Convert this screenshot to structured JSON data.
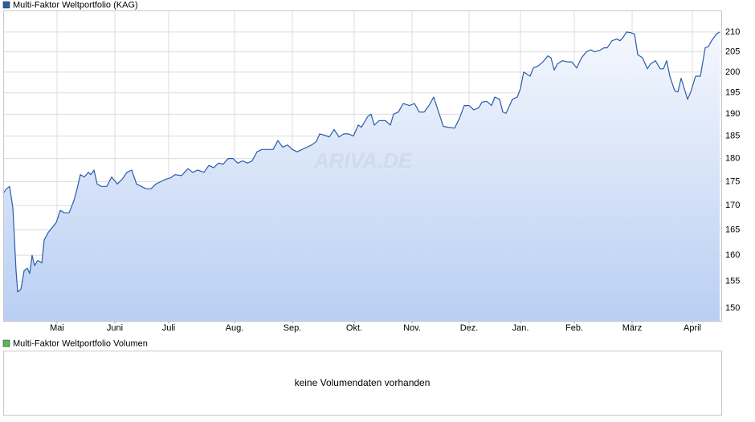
{
  "chart_data": {
    "type": "line",
    "title": "Multi-Faktor Weltportfolio (KAG)",
    "volume_title": "Multi-Faktor Weltportfolio Volumen",
    "volume_message": "keine Volumendaten vorhanden",
    "watermark": "ARIVA.DE",
    "log": true,
    "grid": true,
    "xlim": [
      0,
      447
    ],
    "ylim": [
      147.7,
      215.6
    ],
    "yticks": [
      150,
      155,
      160,
      165,
      170,
      175,
      180,
      185,
      190,
      195,
      200,
      205,
      210
    ],
    "xticks": [
      {
        "value": 33.5,
        "label": "Mai"
      },
      {
        "value": 69.5,
        "label": "Juni"
      },
      {
        "value": 103,
        "label": "Juli"
      },
      {
        "value": 144,
        "label": "Aug."
      },
      {
        "value": 180,
        "label": "Sep."
      },
      {
        "value": 218.5,
        "label": "Okt."
      },
      {
        "value": 254.5,
        "label": "Nov."
      },
      {
        "value": 290,
        "label": "Dez."
      },
      {
        "value": 322,
        "label": "Jan."
      },
      {
        "value": 355.5,
        "label": "Feb."
      },
      {
        "value": 391.5,
        "label": "März"
      },
      {
        "value": 429,
        "label": "April"
      }
    ],
    "series": [
      {
        "name": "Multi-Faktor Weltportfolio (KAG)",
        "color": "#2a5caa",
        "fill_top": "#f4f7fd",
        "fill_bottom": "#b9cff3",
        "x": [
          0,
          2,
          4,
          6,
          8,
          9,
          11,
          13,
          15,
          16.5,
          18,
          19.5,
          21.5,
          24,
          25.5,
          28,
          30.5,
          33,
          35.5,
          38,
          41,
          44,
          46,
          48,
          50.5,
          53,
          54.5,
          56.5,
          58.5,
          61,
          64.5,
          67.5,
          71,
          74,
          77,
          80,
          83,
          86,
          89,
          92,
          95,
          98,
          101,
          104,
          107,
          111,
          115,
          118,
          121,
          125,
          128,
          131,
          134,
          137,
          140,
          143,
          146,
          149,
          152,
          155,
          158,
          161,
          164,
          168,
          171,
          174,
          177,
          180,
          183,
          186,
          189,
          192,
          195,
          197,
          200,
          203,
          206,
          209,
          212,
          215,
          218,
          221,
          223,
          227,
          229,
          231,
          234,
          238,
          241,
          243,
          246,
          249,
          253,
          256,
          259,
          262,
          265,
          268,
          271,
          274,
          277,
          281,
          284,
          287,
          290,
          293,
          296,
          298,
          301,
          304,
          306,
          309,
          311,
          313,
          317,
          320,
          322,
          324,
          326,
          328,
          330,
          333,
          336,
          339,
          341,
          343,
          345,
          348,
          351,
          354,
          357,
          360,
          363,
          366,
          368,
          371,
          374,
          376,
          379,
          382,
          384,
          386,
          388,
          391,
          393,
          395,
          398,
          401,
          403,
          406,
          409,
          411,
          413,
          415,
          418,
          420,
          422,
          424,
          426,
          428,
          431,
          434,
          437,
          439,
          441,
          444,
          446
        ],
        "values": [
          172.5,
          173.5,
          174,
          169.5,
          157,
          153,
          153.5,
          157,
          157.5,
          156.5,
          160,
          158,
          159,
          158.5,
          163,
          164.5,
          165.5,
          166.5,
          169,
          168.5,
          168.5,
          171,
          173.5,
          176.5,
          176,
          177,
          176.5,
          177.5,
          174.5,
          174,
          174,
          176,
          174.5,
          175.5,
          177,
          177.5,
          174.5,
          174,
          173.5,
          173.5,
          174.5,
          175,
          175.5,
          175.8,
          176.5,
          176.3,
          177.8,
          177,
          177.5,
          177,
          178.5,
          178,
          179,
          178.8,
          180,
          180,
          179,
          179.5,
          179,
          179.5,
          181.5,
          182,
          182,
          182,
          184,
          182.5,
          183,
          182,
          181.5,
          182,
          182.5,
          183,
          183.8,
          185.5,
          185.2,
          184.8,
          186.5,
          184.8,
          185.5,
          185.5,
          185,
          187.5,
          187,
          189.5,
          190,
          187.5,
          188.5,
          188.5,
          187.5,
          190,
          190.5,
          192.5,
          192,
          192.5,
          190.5,
          190.5,
          192,
          194,
          190.5,
          187.2,
          187,
          186.8,
          189,
          192,
          192,
          191,
          191.5,
          192.8,
          193,
          192,
          194,
          193.5,
          190.5,
          190.2,
          193.5,
          194,
          196,
          200,
          199.5,
          199,
          201,
          201.5,
          202.5,
          204,
          203.5,
          200.5,
          202,
          202.8,
          202.5,
          202.5,
          201,
          203.5,
          205,
          205.5,
          205,
          205.3,
          206,
          206,
          207.8,
          208.2,
          207.8,
          208.7,
          210,
          209.8,
          209.5,
          204.3,
          203.5,
          200.8,
          202,
          202.8,
          200.8,
          200.8,
          202.8,
          199,
          195.5,
          195.2,
          198.5,
          196,
          193.5,
          195.2,
          199,
          199,
          206,
          206.3,
          207.8,
          209.5,
          210
        ]
      }
    ],
    "volume_color": "#55bb55"
  }
}
